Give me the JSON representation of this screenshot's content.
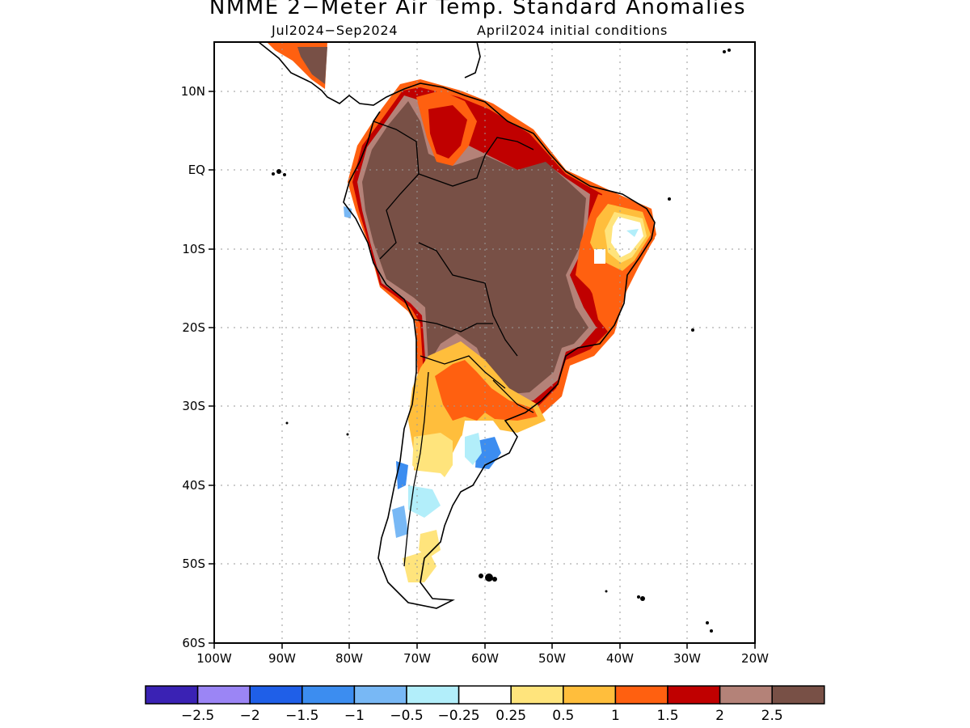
{
  "title": "NMME 2−Meter Air Temp. Standard Anomalies",
  "subtitle_left": "Jul2024−Sep2024",
  "subtitle_right": "April2024 initial conditions",
  "map": {
    "lon_range": [
      -100,
      -20
    ],
    "lat_range": [
      -60,
      5
    ],
    "lon_ticks": [
      "100W",
      "90W",
      "80W",
      "70W",
      "60W",
      "50W",
      "40W",
      "30W",
      "20W"
    ],
    "lat_ticks": [
      "10N",
      "EQ",
      "10S",
      "20S",
      "30S",
      "40S",
      "50S",
      "60S"
    ],
    "lat_tick_values": [
      10,
      0,
      -10,
      -20,
      -30,
      -40,
      -50,
      -60
    ],
    "lon_tick_values": [
      -100,
      -90,
      -80,
      -70,
      -60,
      -50,
      -40,
      -30,
      -20
    ]
  },
  "colorbar": {
    "colors": [
      "#3a22b4",
      "#9b85f5",
      "#1f5fe8",
      "#3c8df0",
      "#78b8f5",
      "#b2eefa",
      "#ffffff",
      "#ffe47c",
      "#ffbe3c",
      "#ff6010",
      "#c00000",
      "#b48278",
      "#785046"
    ],
    "labels": [
      "−2.5",
      "−2",
      "−1.5",
      "−1",
      "−0.5",
      "−0.25",
      "0.25",
      "0.5",
      "1",
      "1.5",
      "2",
      "2.5"
    ]
  }
}
